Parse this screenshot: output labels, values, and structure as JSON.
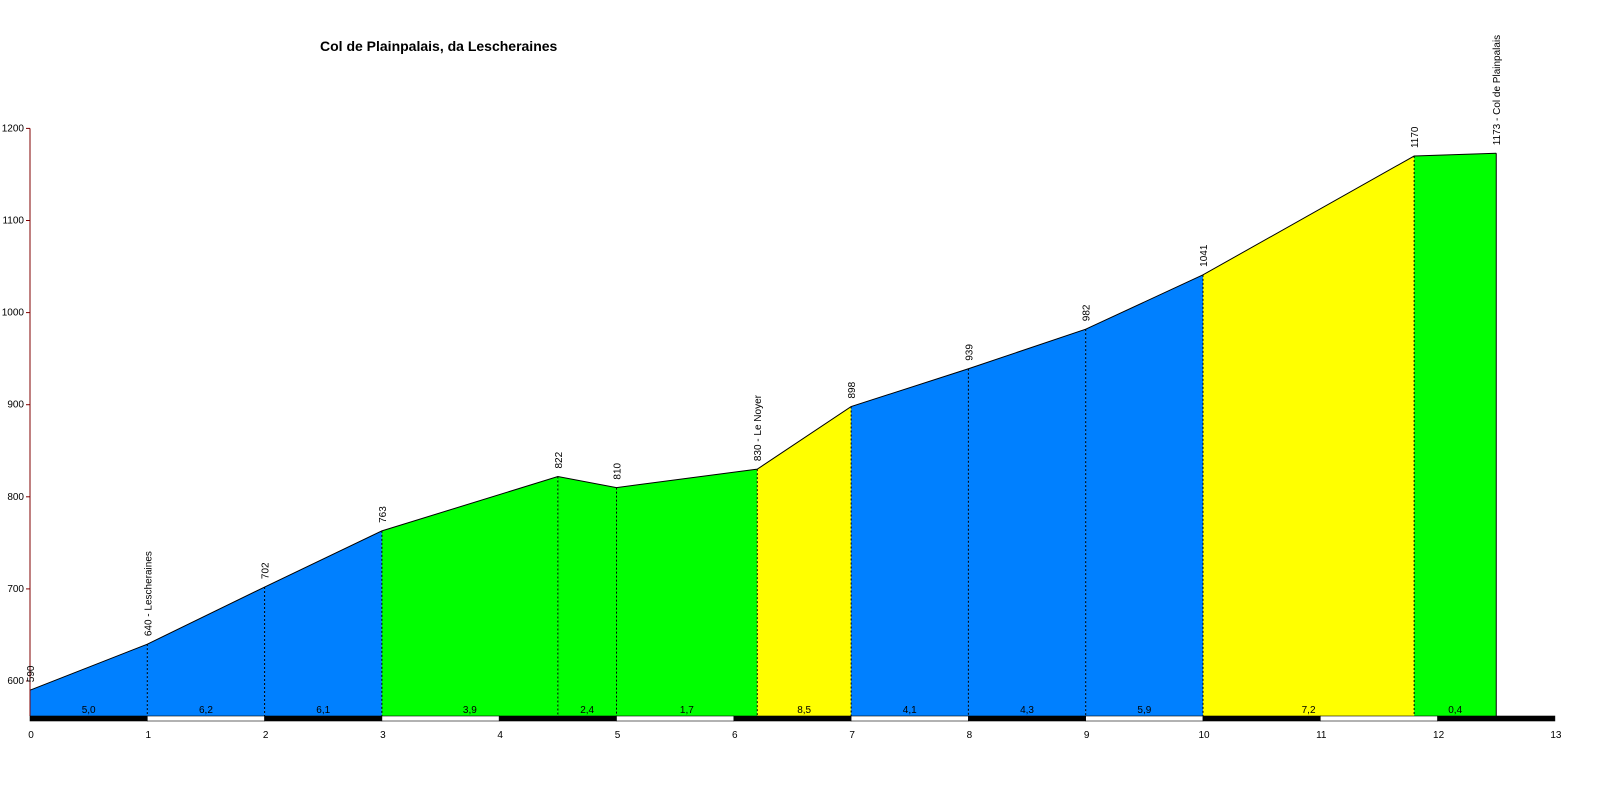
{
  "chart_data": {
    "type": "area",
    "title": "Col de Plainpalais, da Lescheraines",
    "xlabel": "",
    "ylabel": "",
    "xlim": [
      0,
      13
    ],
    "ylim": [
      555,
      1200
    ],
    "x_ticks": [
      0,
      1,
      2,
      3,
      4,
      5,
      6,
      7,
      8,
      9,
      10,
      11,
      12,
      13
    ],
    "y_ticks": [
      600,
      700,
      800,
      900,
      1000,
      1100,
      1200
    ],
    "profile": [
      {
        "x": 0,
        "y": 590
      },
      {
        "x": 1,
        "y": 640
      },
      {
        "x": 2,
        "y": 702
      },
      {
        "x": 3,
        "y": 763
      },
      {
        "x": 4.5,
        "y": 822
      },
      {
        "x": 5,
        "y": 810
      },
      {
        "x": 6.2,
        "y": 830
      },
      {
        "x": 7,
        "y": 898
      },
      {
        "x": 8,
        "y": 939
      },
      {
        "x": 9,
        "y": 982
      },
      {
        "x": 10,
        "y": 1041
      },
      {
        "x": 11.8,
        "y": 1170
      },
      {
        "x": 12.5,
        "y": 1173
      }
    ],
    "point_labels": [
      "590",
      "640 - Lescheraines",
      "702",
      "763",
      "822",
      "810",
      "830 - Le Noyer",
      "898",
      "939",
      "982",
      "1041",
      "1170",
      "1173 - Col de Plainpalais"
    ],
    "segment_gradients": [
      "5,0",
      "6,2",
      "6,1",
      "3,9",
      "2,4",
      "1,7",
      "8,5",
      "4,1",
      "4,3",
      "5,9",
      "7,2",
      "0,4"
    ],
    "segment_colors": [
      "#0080ff",
      "#0080ff",
      "#0080ff",
      "#00ff00",
      "#00ff00",
      "#00ff00",
      "#ffff00",
      "#0080ff",
      "#0080ff",
      "#0080ff",
      "#ffff00",
      "#00ff00"
    ],
    "grid": false,
    "legend": "none"
  }
}
